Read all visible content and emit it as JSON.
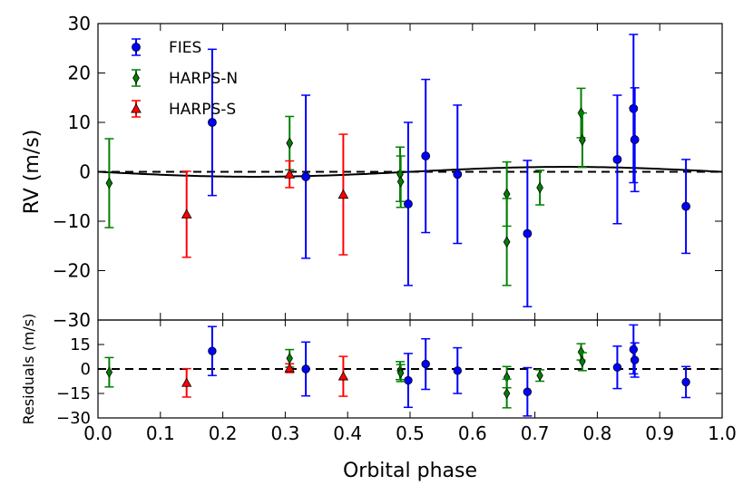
{
  "chart_data": {
    "type": "scatter",
    "xlabel": "Orbital phase",
    "top_panel": {
      "ylabel": "RV (m/s)",
      "ylim": [
        -30,
        30
      ],
      "yticks": [
        "30",
        "20",
        "10",
        "0",
        "−10",
        "−20",
        "−30"
      ],
      "ytick_values": [
        30,
        20,
        10,
        0,
        -10,
        -20,
        -30
      ]
    },
    "bottom_panel": {
      "ylabel": "Residuals (m/s)",
      "ylim": [
        -30,
        30
      ],
      "yticks": [
        "15",
        "0",
        "−15",
        "−30"
      ],
      "ytick_values": [
        15,
        0,
        -15,
        -30
      ]
    },
    "xlim": [
      0,
      1
    ],
    "xticks": [
      "0.0",
      "0.1",
      "0.2",
      "0.3",
      "0.4",
      "0.5",
      "0.6",
      "0.7",
      "0.8",
      "0.9",
      "1.0"
    ],
    "xtick_values": [
      0.0,
      0.1,
      0.2,
      0.3,
      0.4,
      0.5,
      0.6,
      0.7,
      0.8,
      0.9,
      1.0
    ],
    "series": [
      {
        "name": "FIES",
        "marker": "circle",
        "color": "#0000ff",
        "points": [
          {
            "x": 0.183,
            "y": 10.0,
            "err": 14.8
          },
          {
            "x": 0.333,
            "y": -1.0,
            "err": 16.5
          },
          {
            "x": 0.497,
            "y": -6.5,
            "err": 16.5
          },
          {
            "x": 0.525,
            "y": 3.2,
            "err": 15.5
          },
          {
            "x": 0.576,
            "y": -0.5,
            "err": 14.0
          },
          {
            "x": 0.688,
            "y": -12.5,
            "err": 14.8
          },
          {
            "x": 0.832,
            "y": 2.5,
            "err": 13.0
          },
          {
            "x": 0.858,
            "y": 12.8,
            "err": 15.0
          },
          {
            "x": 0.86,
            "y": 6.5,
            "err": 10.5
          },
          {
            "x": 0.942,
            "y": -7.0,
            "err": 9.5
          }
        ],
        "residuals": [
          {
            "x": 0.183,
            "y": 11.0,
            "err": 15.0
          },
          {
            "x": 0.333,
            "y": 0.0,
            "err": 16.5
          },
          {
            "x": 0.497,
            "y": -7.0,
            "err": 16.5
          },
          {
            "x": 0.525,
            "y": 3.0,
            "err": 15.5
          },
          {
            "x": 0.576,
            "y": -1.0,
            "err": 14.0
          },
          {
            "x": 0.688,
            "y": -14.0,
            "err": 14.8
          },
          {
            "x": 0.832,
            "y": 1.0,
            "err": 13.0
          },
          {
            "x": 0.858,
            "y": 12.0,
            "err": 15.0
          },
          {
            "x": 0.86,
            "y": 5.5,
            "err": 10.5
          },
          {
            "x": 0.942,
            "y": -8.0,
            "err": 9.5
          }
        ]
      },
      {
        "name": "HARPS-N",
        "marker": "diamond",
        "color": "#008000",
        "points": [
          {
            "x": 0.018,
            "y": -2.3,
            "err": 9.0
          },
          {
            "x": 0.307,
            "y": 5.8,
            "err": 5.4
          },
          {
            "x": 0.484,
            "y": -0.5,
            "err": 5.5
          },
          {
            "x": 0.485,
            "y": -2.0,
            "err": 5.2
          },
          {
            "x": 0.655,
            "y": -4.5,
            "err": 6.5
          },
          {
            "x": 0.655,
            "y": -14.2,
            "err": 8.8
          },
          {
            "x": 0.708,
            "y": -3.2,
            "err": 3.5
          },
          {
            "x": 0.774,
            "y": 11.9,
            "err": 5.0
          },
          {
            "x": 0.776,
            "y": 6.4,
            "err": 5.5
          }
        ],
        "residuals": [
          {
            "x": 0.018,
            "y": -2.0,
            "err": 9.0
          },
          {
            "x": 0.307,
            "y": 6.5,
            "err": 5.4
          },
          {
            "x": 0.484,
            "y": -1.0,
            "err": 5.5
          },
          {
            "x": 0.485,
            "y": -2.5,
            "err": 5.2
          },
          {
            "x": 0.655,
            "y": -5.0,
            "err": 6.5
          },
          {
            "x": 0.655,
            "y": -15.0,
            "err": 8.8
          },
          {
            "x": 0.708,
            "y": -4.0,
            "err": 3.5
          },
          {
            "x": 0.774,
            "y": 10.5,
            "err": 5.0
          },
          {
            "x": 0.776,
            "y": 4.5,
            "err": 5.5
          }
        ]
      },
      {
        "name": "HARPS-S",
        "marker": "triangle",
        "color": "#ff0000",
        "points": [
          {
            "x": 0.142,
            "y": -8.6,
            "err": 8.7
          },
          {
            "x": 0.307,
            "y": -0.5,
            "err": 2.7
          },
          {
            "x": 0.393,
            "y": -4.6,
            "err": 12.2
          }
        ],
        "residuals": [
          {
            "x": 0.142,
            "y": -8.5,
            "err": 8.7
          },
          {
            "x": 0.307,
            "y": 0.5,
            "err": 2.7
          },
          {
            "x": 0.393,
            "y": -4.5,
            "err": 12.2
          }
        ]
      }
    ],
    "model_curve": {
      "name": "Keplerian model",
      "style": "solid",
      "color": "#000000",
      "amplitude": 1.0,
      "phase_offset": 0.0
    },
    "zero_line": {
      "style": "dashed",
      "color": "#000000",
      "value": 0
    },
    "legend": {
      "placement": "top-left",
      "entries": [
        "FIES",
        "HARPS-N",
        "HARPS-S"
      ]
    }
  }
}
